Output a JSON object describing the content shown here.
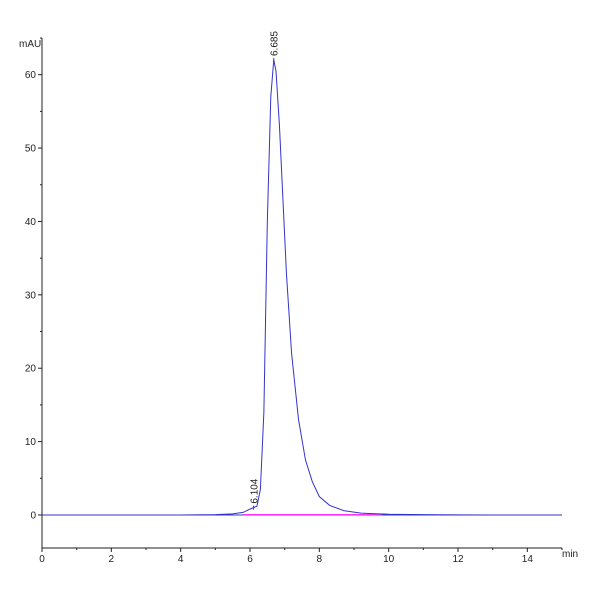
{
  "chart_data": {
    "type": "line",
    "title": "",
    "xlabel": "min",
    "ylabel": "mAU",
    "xlim": [
      0,
      15
    ],
    "ylim": [
      -4.5,
      65
    ],
    "grid": false,
    "x_ticks": [
      0,
      2,
      4,
      6,
      8,
      10,
      12,
      14
    ],
    "y_ticks": [
      0,
      10,
      20,
      30,
      40,
      50,
      60
    ],
    "series": [
      {
        "color": "#3333cc",
        "points": [
          [
            0.0,
            0.0
          ],
          [
            2.0,
            0.0
          ],
          [
            4.0,
            0.0
          ],
          [
            5.0,
            0.05
          ],
          [
            5.5,
            0.15
          ],
          [
            5.8,
            0.35
          ],
          [
            6.0,
            0.8
          ],
          [
            6.1,
            1.0
          ],
          [
            6.2,
            1.2
          ],
          [
            6.3,
            3.5
          ],
          [
            6.4,
            14.0
          ],
          [
            6.5,
            40.0
          ],
          [
            6.6,
            57.0
          ],
          [
            6.685,
            62.0
          ],
          [
            6.75,
            60.5
          ],
          [
            6.85,
            53.0
          ],
          [
            6.95,
            43.0
          ],
          [
            7.05,
            33.0
          ],
          [
            7.2,
            22.0
          ],
          [
            7.4,
            13.0
          ],
          [
            7.6,
            7.5
          ],
          [
            7.8,
            4.5
          ],
          [
            8.0,
            2.5
          ],
          [
            8.3,
            1.3
          ],
          [
            8.7,
            0.6
          ],
          [
            9.2,
            0.25
          ],
          [
            10.0,
            0.1
          ],
          [
            11.0,
            0.05
          ],
          [
            12.0,
            0.02
          ],
          [
            13.0,
            0.0
          ],
          [
            14.0,
            0.0
          ],
          [
            15.0,
            0.0
          ]
        ]
      }
    ],
    "baseline": {
      "color": "#ff33ff",
      "x": [
        5.8,
        9.8
      ],
      "y": 0.05
    },
    "annotations": [
      {
        "text": "6.104",
        "x": 6.104,
        "y": 1.0
      },
      {
        "text": "6.685",
        "x": 6.685,
        "y": 62.0
      }
    ],
    "colors": {
      "axis": "#222222",
      "zero_line": "#3333cc"
    }
  }
}
